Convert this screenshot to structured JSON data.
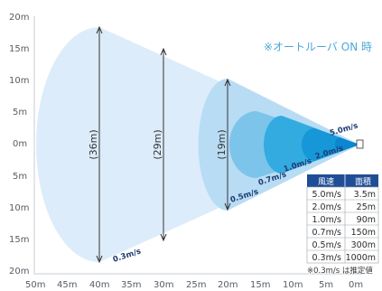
{
  "note": "※オートルーバ ON 時",
  "y_axis": {
    "ticks": [
      "20m",
      "15m",
      "10m",
      "5m",
      "0m",
      "5m",
      "10m",
      "15m",
      "20m"
    ]
  },
  "x_axis": {
    "ticks": [
      "50m",
      "45m",
      "40m",
      "35m",
      "30m",
      "25m",
      "20m",
      "15m",
      "10m",
      "5m",
      "0m"
    ]
  },
  "dimensions": [
    {
      "label": "(36m)"
    },
    {
      "label": "(29m)"
    },
    {
      "label": "(19m)"
    }
  ],
  "speed_labels": [
    "5.0m/s",
    "2.0m/s",
    "1.0m/s",
    "0.7m/s",
    "0.5m/s",
    "0.3m/s"
  ],
  "table": {
    "headers": [
      "風速",
      "面積"
    ],
    "rows": [
      [
        "5.0m/s",
        "3.5m"
      ],
      [
        "2.0m/s",
        "25m"
      ],
      [
        "1.0m/s",
        "90m"
      ],
      [
        "0.7m/s",
        "150m"
      ],
      [
        "0.5m/s",
        "300m"
      ],
      [
        "0.3m/s",
        "1000m"
      ]
    ],
    "footnote": "※0.3m/s は推定値"
  },
  "colors": {
    "zone_0_3": "#dcecfa",
    "zone_0_5": "#b8dcf4",
    "zone_0_7": "#7cc4ea",
    "zone_1_0": "#33abe1",
    "zone_2_0": "#1597d8",
    "zone_5_0": "#0b86cf",
    "table_header": "#1f4e96",
    "accent_text": "#4aa8d8"
  }
}
